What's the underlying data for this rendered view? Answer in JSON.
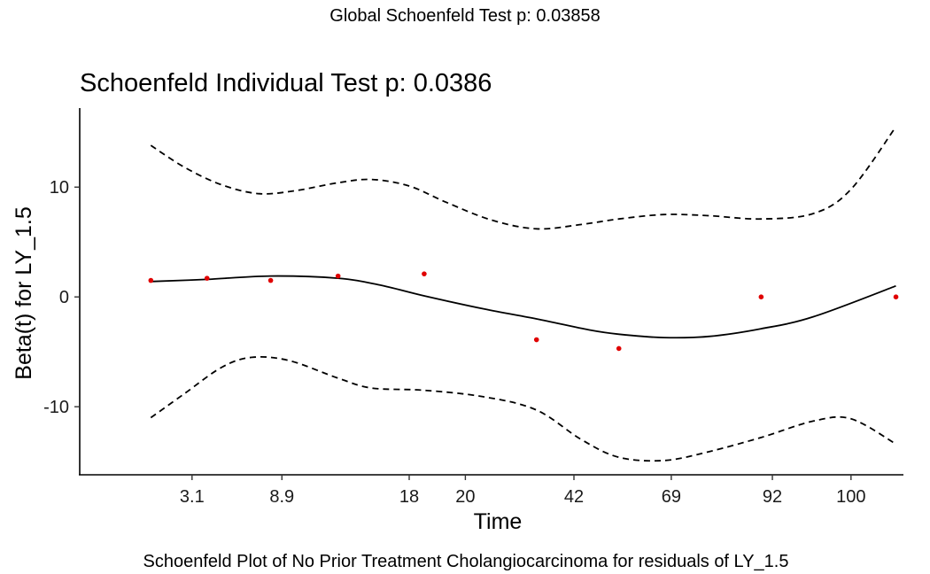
{
  "chart_data": {
    "type": "scatter",
    "global_title": "Global Schoenfeld Test p: 0.03858",
    "title": "Schoenfeld Individual Test p: 0.0386",
    "xlabel": "Time",
    "ylabel": "Beta(t) for LY_1.5",
    "caption": "Schoenfeld Plot of No Prior Treatment Cholangiocarcinoma for residuals of LY_1.5",
    "xlim": [
      0.5,
      11.5
    ],
    "ylim": [
      -16.2,
      17.2
    ],
    "x_ticks": [
      {
        "pos": 2,
        "label": "3.1"
      },
      {
        "pos": 3.2,
        "label": "8.9"
      },
      {
        "pos": 4.9,
        "label": "18"
      },
      {
        "pos": 5.65,
        "label": "20"
      },
      {
        "pos": 7.1,
        "label": "42"
      },
      {
        "pos": 8.4,
        "label": "69"
      },
      {
        "pos": 9.75,
        "label": "92"
      },
      {
        "pos": 10.8,
        "label": "100"
      }
    ],
    "y_ticks": [
      {
        "value": 10,
        "label": "10"
      },
      {
        "value": 0,
        "label": "0"
      },
      {
        "value": -10,
        "label": "-10"
      }
    ],
    "points": [
      {
        "x": 1.45,
        "y": 1.5
      },
      {
        "x": 2.2,
        "y": 1.7
      },
      {
        "x": 3.05,
        "y": 1.5
      },
      {
        "x": 3.95,
        "y": 1.9
      },
      {
        "x": 5.1,
        "y": 2.1
      },
      {
        "x": 6.6,
        "y": -3.9
      },
      {
        "x": 7.7,
        "y": -4.7
      },
      {
        "x": 9.6,
        "y": 0.0
      },
      {
        "x": 11.4,
        "y": 0.0
      }
    ],
    "fit": [
      [
        1.45,
        1.4
      ],
      [
        2.2,
        1.6
      ],
      [
        3.05,
        1.9
      ],
      [
        3.95,
        1.7
      ],
      [
        4.5,
        1.1
      ],
      [
        5.1,
        0.1
      ],
      [
        5.9,
        -1.1
      ],
      [
        6.6,
        -2.0
      ],
      [
        7.3,
        -3.0
      ],
      [
        7.7,
        -3.4
      ],
      [
        8.3,
        -3.7
      ],
      [
        8.9,
        -3.6
      ],
      [
        9.6,
        -2.9
      ],
      [
        10.3,
        -1.8
      ],
      [
        11.4,
        1.0
      ]
    ],
    "upper": [
      [
        1.45,
        13.8
      ],
      [
        1.9,
        11.8
      ],
      [
        2.4,
        10.2
      ],
      [
        2.9,
        9.4
      ],
      [
        3.4,
        9.7
      ],
      [
        3.95,
        10.4
      ],
      [
        4.4,
        10.7
      ],
      [
        4.9,
        10.1
      ],
      [
        5.4,
        8.6
      ],
      [
        6.0,
        7.0
      ],
      [
        6.6,
        6.2
      ],
      [
        7.2,
        6.6
      ],
      [
        7.7,
        7.1
      ],
      [
        8.3,
        7.5
      ],
      [
        8.9,
        7.4
      ],
      [
        9.6,
        7.1
      ],
      [
        10.3,
        7.6
      ],
      [
        10.8,
        9.8
      ],
      [
        11.4,
        15.5
      ]
    ],
    "lower": [
      [
        1.45,
        -11.0
      ],
      [
        1.9,
        -8.8
      ],
      [
        2.4,
        -6.4
      ],
      [
        2.8,
        -5.5
      ],
      [
        3.3,
        -5.8
      ],
      [
        3.95,
        -7.4
      ],
      [
        4.4,
        -8.3
      ],
      [
        5.1,
        -8.5
      ],
      [
        5.9,
        -9.1
      ],
      [
        6.6,
        -10.3
      ],
      [
        7.2,
        -13.0
      ],
      [
        7.7,
        -14.6
      ],
      [
        8.3,
        -14.9
      ],
      [
        8.9,
        -14.1
      ],
      [
        9.6,
        -12.8
      ],
      [
        10.3,
        -11.3
      ],
      [
        10.8,
        -11.1
      ],
      [
        11.4,
        -13.4
      ]
    ],
    "point_color": "#e00000",
    "line_color": "#000000"
  }
}
